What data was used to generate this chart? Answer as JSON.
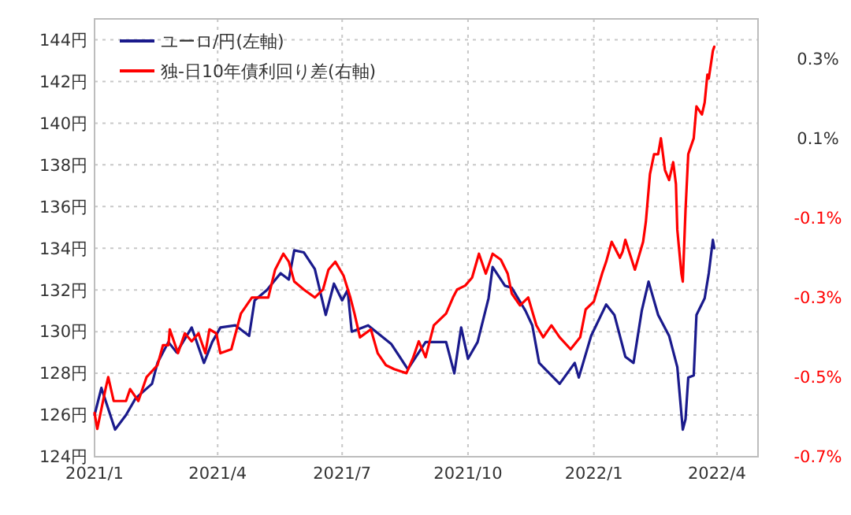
{
  "chart_data": {
    "type": "line",
    "xlim": [
      "2021-01-01",
      "2022-05-01"
    ],
    "xticks": [
      {
        "value": "2021-01-01",
        "label": "2021/1"
      },
      {
        "value": "2021-04-01",
        "label": "2021/4"
      },
      {
        "value": "2021-07-01",
        "label": "2021/7"
      },
      {
        "value": "2021-10-01",
        "label": "2021/10"
      },
      {
        "value": "2022-01-01",
        "label": "2022/1"
      },
      {
        "value": "2022-04-01",
        "label": "2022/4"
      }
    ],
    "ylim": [
      124,
      145
    ],
    "yticks": [
      {
        "value": 124,
        "label": "124円"
      },
      {
        "value": 126,
        "label": "126円"
      },
      {
        "value": 128,
        "label": "128円"
      },
      {
        "value": 130,
        "label": "130円"
      },
      {
        "value": 132,
        "label": "132円"
      },
      {
        "value": 134,
        "label": "134円"
      },
      {
        "value": 136,
        "label": "136円"
      },
      {
        "value": 138,
        "label": "138円"
      },
      {
        "value": 140,
        "label": "140円"
      },
      {
        "value": 142,
        "label": "142円"
      },
      {
        "value": 144,
        "label": "144円"
      }
    ],
    "y2lim": [
      -0.7,
      0.4
    ],
    "y2ticks": [
      {
        "value": -0.7,
        "label": "-0.7%"
      },
      {
        "value": -0.5,
        "label": "-0.5%"
      },
      {
        "value": -0.3,
        "label": "-0.3%"
      },
      {
        "value": -0.1,
        "label": "-0.1%"
      },
      {
        "value": 0.1,
        "label": "0.1%"
      },
      {
        "value": 0.3,
        "label": "0.3%"
      }
    ],
    "grid": true,
    "legend": "top left",
    "line_style": "solid",
    "marker": "none",
    "series": [
      {
        "name": "ユーロ/円(左軸)",
        "color": "#1a1a8c",
        "x": [
          "2021-01-01",
          "2021-01-06",
          "2021-01-16",
          "2021-01-24",
          "2021-01-31",
          "2021-02-12",
          "2021-02-16",
          "2021-02-24",
          "2021-03-02",
          "2021-03-13",
          "2021-03-22",
          "2021-03-28",
          "2021-04-03",
          "2021-04-14",
          "2021-04-24",
          "2021-04-28",
          "2021-05-07",
          "2021-05-17",
          "2021-05-23",
          "2021-05-27",
          "2021-06-03",
          "2021-06-11",
          "2021-06-19",
          "2021-06-25",
          "2021-07-01",
          "2021-07-05",
          "2021-07-08",
          "2021-07-20",
          "2021-08-06",
          "2021-08-18",
          "2021-08-31",
          "2021-09-15",
          "2021-09-21",
          "2021-09-26",
          "2021-10-01",
          "2021-10-08",
          "2021-10-16",
          "2021-10-19",
          "2021-10-28",
          "2021-11-02",
          "2021-11-12",
          "2021-11-17",
          "2021-11-22",
          "2021-12-07",
          "2021-12-18",
          "2021-12-21",
          "2021-12-30",
          "2022-01-10",
          "2022-01-16",
          "2022-01-24",
          "2022-01-30",
          "2022-02-05",
          "2022-02-10",
          "2022-02-17",
          "2022-02-25",
          "2022-03-03",
          "2022-03-07",
          "2022-03-09",
          "2022-03-11",
          "2022-03-15",
          "2022-03-17",
          "2022-03-23",
          "2022-03-26",
          "2022-03-29",
          "2022-03-30"
        ],
        "values": [
          126.0,
          127.3,
          125.3,
          126.0,
          126.8,
          127.5,
          128.5,
          129.5,
          129.0,
          130.2,
          128.5,
          129.5,
          130.2,
          130.3,
          129.8,
          131.5,
          132.0,
          132.8,
          132.5,
          133.9,
          133.8,
          133.0,
          130.8,
          132.3,
          131.5,
          132.0,
          130.0,
          130.3,
          129.4,
          128.2,
          129.5,
          129.5,
          128.0,
          130.2,
          128.7,
          129.5,
          131.6,
          133.1,
          132.2,
          132.1,
          131.0,
          130.3,
          128.5,
          127.5,
          128.5,
          127.8,
          129.8,
          131.3,
          130.8,
          128.8,
          128.5,
          131.0,
          132.4,
          130.8,
          129.8,
          128.3,
          125.3,
          125.8,
          127.8,
          127.9,
          130.8,
          131.6,
          132.8,
          134.4,
          134.0
        ]
      },
      {
        "name": "独-日10年債利回り差(右軸)",
        "color": "#ff0000",
        "axis": "y2",
        "x": [
          "2021-01-01",
          "2021-01-03",
          "2021-01-09",
          "2021-01-11",
          "2021-01-15",
          "2021-01-24",
          "2021-01-27",
          "2021-02-02",
          "2021-02-08",
          "2021-02-16",
          "2021-02-20",
          "2021-02-24",
          "2021-02-25",
          "2021-03-03",
          "2021-03-08",
          "2021-03-13",
          "2021-03-18",
          "2021-03-23",
          "2021-03-26",
          "2021-03-31",
          "2021-04-03",
          "2021-04-11",
          "2021-04-18",
          "2021-04-26",
          "2021-05-02",
          "2021-05-08",
          "2021-05-13",
          "2021-05-19",
          "2021-05-23",
          "2021-05-27",
          "2021-06-03",
          "2021-06-11",
          "2021-06-17",
          "2021-06-21",
          "2021-06-26",
          "2021-07-02",
          "2021-07-07",
          "2021-07-10",
          "2021-07-14",
          "2021-07-22",
          "2021-07-27",
          "2021-08-02",
          "2021-08-08",
          "2021-08-17",
          "2021-08-22",
          "2021-08-26",
          "2021-08-31",
          "2021-09-06",
          "2021-09-15",
          "2021-09-20",
          "2021-09-23",
          "2021-09-29",
          "2021-10-04",
          "2021-10-09",
          "2021-10-14",
          "2021-10-19",
          "2021-10-25",
          "2021-10-30",
          "2021-11-02",
          "2021-11-08",
          "2021-11-14",
          "2021-11-20",
          "2021-11-25",
          "2021-12-01",
          "2021-12-07",
          "2021-12-15",
          "2021-12-22",
          "2021-12-26",
          "2022-01-01",
          "2022-01-07",
          "2022-01-10",
          "2022-01-14",
          "2022-01-20",
          "2022-01-22",
          "2022-01-24",
          "2022-01-31",
          "2022-02-06",
          "2022-02-08",
          "2022-02-11",
          "2022-02-14",
          "2022-02-17",
          "2022-02-19",
          "2022-02-22",
          "2022-02-25",
          "2022-02-28",
          "2022-03-02",
          "2022-03-03",
          "2022-03-06",
          "2022-03-07",
          "2022-03-09",
          "2022-03-11",
          "2022-03-15",
          "2022-03-17",
          "2022-03-21",
          "2022-03-23",
          "2022-03-25",
          "2022-03-26",
          "2022-03-29",
          "2022-03-30"
        ],
        "values": [
          -0.59,
          -0.63,
          -0.53,
          -0.5,
          -0.56,
          -0.56,
          -0.53,
          -0.56,
          -0.5,
          -0.47,
          -0.42,
          -0.42,
          -0.38,
          -0.44,
          -0.39,
          -0.41,
          -0.39,
          -0.44,
          -0.38,
          -0.39,
          -0.44,
          -0.43,
          -0.34,
          -0.3,
          -0.3,
          -0.3,
          -0.23,
          -0.19,
          -0.21,
          -0.26,
          -0.28,
          -0.3,
          -0.28,
          -0.23,
          -0.21,
          -0.245,
          -0.3,
          -0.34,
          -0.4,
          -0.38,
          -0.44,
          -0.47,
          -0.48,
          -0.49,
          -0.45,
          -0.41,
          -0.45,
          -0.37,
          -0.34,
          -0.3,
          -0.28,
          -0.27,
          -0.25,
          -0.19,
          -0.24,
          -0.19,
          -0.205,
          -0.24,
          -0.29,
          -0.32,
          -0.3,
          -0.37,
          -0.4,
          -0.37,
          -0.4,
          -0.43,
          -0.4,
          -0.33,
          -0.31,
          -0.24,
          -0.21,
          -0.16,
          -0.2,
          -0.185,
          -0.155,
          -0.23,
          -0.16,
          -0.11,
          0.01,
          0.06,
          0.06,
          0.1,
          0.02,
          -0.005,
          0.04,
          -0.015,
          -0.13,
          -0.24,
          -0.26,
          -0.08,
          0.06,
          0.1,
          0.18,
          0.16,
          0.19,
          0.26,
          0.25,
          0.32,
          0.33
        ]
      }
    ]
  }
}
